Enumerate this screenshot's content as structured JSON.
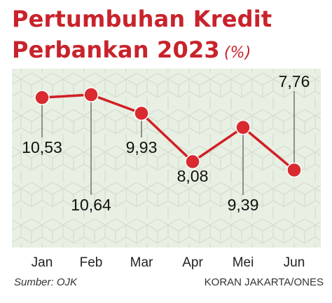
{
  "title_line1": "Pertumbuhan Kredit",
  "title_line2": "Perbankan 2023",
  "unit": "(%)",
  "source": "Sumber: OJK",
  "credit": "KORAN JAKARTA/ONES",
  "colors": {
    "line": "#d11f26",
    "marker": "#d82a2f",
    "plot_background": "#e8efe3",
    "pattern": "#d4ddd0",
    "title": "#c8232c"
  },
  "chart_data": {
    "type": "line",
    "categories": [
      "Jan",
      "Feb",
      "Mar",
      "Apr",
      "Mei",
      "Jun"
    ],
    "values": [
      10.53,
      10.64,
      9.93,
      8.08,
      9.39,
      7.76
    ],
    "value_labels": [
      "10,53",
      "10,64",
      "9,93",
      "8,08",
      "9,39",
      "7,76"
    ],
    "title": "Pertumbuhan Kredit Perbankan 2023",
    "xlabel": "",
    "ylabel": "",
    "grid": false,
    "legend": "none"
  }
}
